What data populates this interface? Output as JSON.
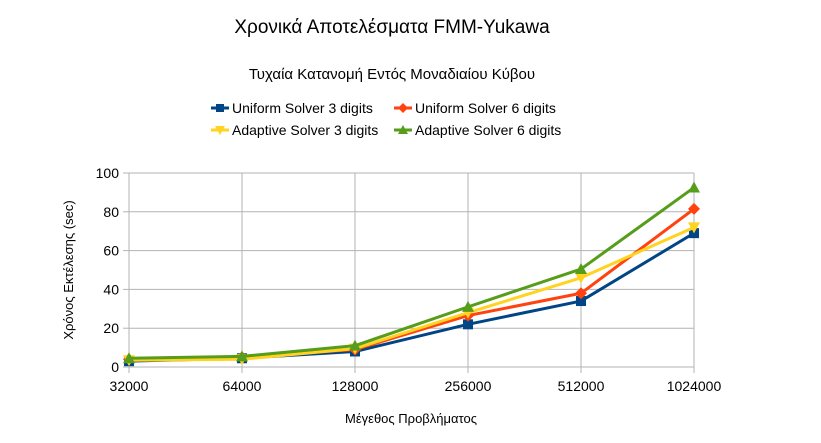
{
  "chart_data": {
    "type": "line",
    "title": "Χρονικά Αποτελέσματα FMM-Yukawa",
    "subtitle": "Τυχαία Κατανομή Εντός Μοναδιαίου Κύβου",
    "xlabel": "Μέγεθος Προβλήματος",
    "ylabel": "Χρόνος Εκτέλεσης (sec)",
    "categories": [
      "32000",
      "64000",
      "128000",
      "256000",
      "512000",
      "1024000"
    ],
    "ylim": [
      0,
      100
    ],
    "yticks": [
      "0",
      "20",
      "40",
      "60",
      "80",
      "100"
    ],
    "grid": true,
    "legend_position": "top",
    "series": [
      {
        "name": "Uniform Solver 3 digits",
        "color": "#004586",
        "marker": "square",
        "values": [
          3,
          4.5,
          8,
          22,
          34,
          69
        ]
      },
      {
        "name": "Uniform Solver 6 digits",
        "color": "#ff420e",
        "marker": "diamond",
        "values": [
          4,
          5,
          9,
          26.5,
          38,
          81.5
        ]
      },
      {
        "name": "Adaptive Solver 3 digits",
        "color": "#ffd320",
        "marker": "triangle-down",
        "values": [
          3.5,
          4,
          9.5,
          28,
          46,
          72
        ]
      },
      {
        "name": "Adaptive Solver 6 digits",
        "color": "#579d1c",
        "marker": "triangle-up",
        "values": [
          4.5,
          5.5,
          11,
          31,
          50.5,
          92.5
        ]
      }
    ]
  }
}
